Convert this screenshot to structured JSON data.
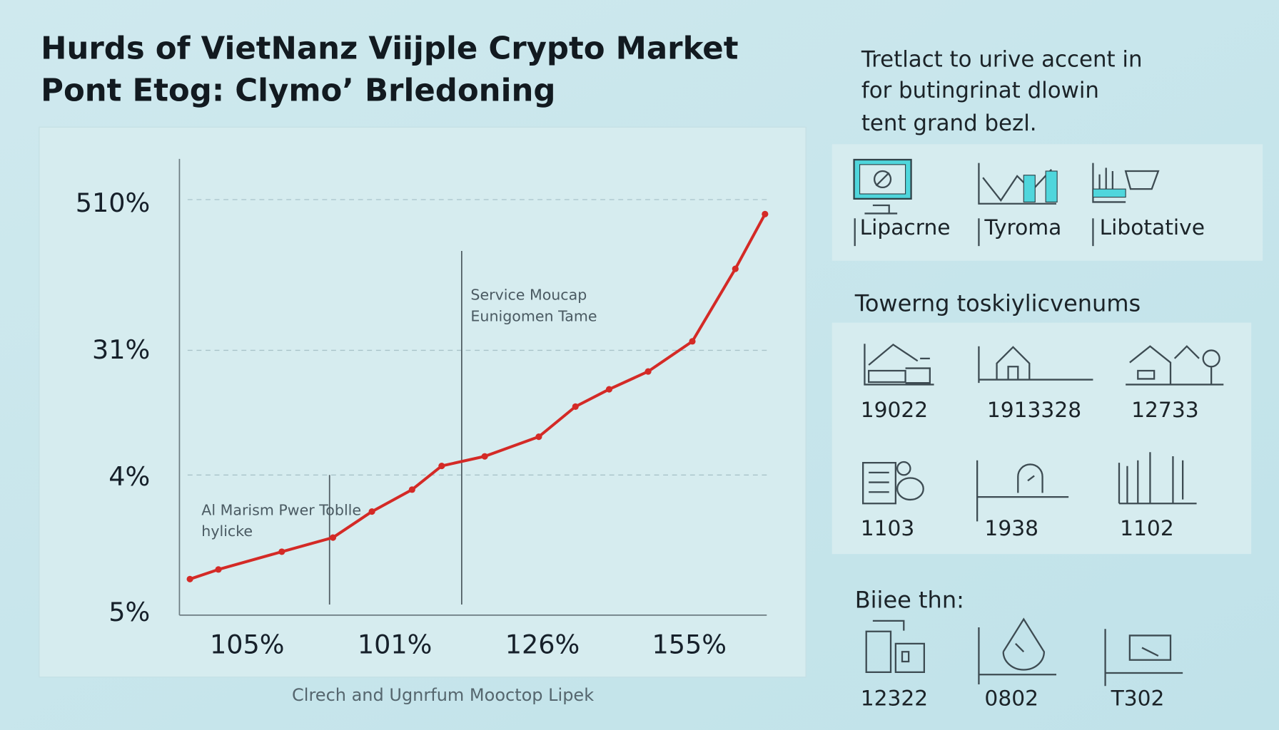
{
  "header": {
    "title_lines": [
      "Hurds of VietNanz Viijple Crypto Market",
      "Pont Etog: Clymo’ Brledoning"
    ]
  },
  "chart_data": {
    "type": "line",
    "y_labels": [
      "510%",
      "31%",
      "4%",
      "5%"
    ],
    "x_labels": [
      "105%",
      "101%",
      "126%",
      "155%"
    ],
    "xlim": [
      0,
      101
    ],
    "ylim": [
      0,
      100
    ],
    "series": [
      {
        "color": "#d42a26",
        "x": [
          1.8,
          6.7,
          17.6,
          26.4,
          33.1,
          40.0,
          45.1,
          52.5,
          61.8,
          68.1,
          73.9,
          80.6,
          88.2,
          95.6,
          100.7
        ],
        "values": [
          7.9,
          10.0,
          13.9,
          17.0,
          22.7,
          27.5,
          32.7,
          34.8,
          39.1,
          45.7,
          49.5,
          53.4,
          60.0,
          75.9,
          87.9
        ]
      }
    ],
    "annotations": [
      {
        "lines": [
          "Service Moucap",
          "Eunigomen Tame"
        ]
      },
      {
        "lines": [
          "Al Marism Pwer Toblle",
          "hylicke"
        ]
      }
    ]
  },
  "sidebar": {
    "intro_lines": [
      "Tretlact to urive accent in",
      "for butingrinat dlowin",
      "tent grand bezl."
    ],
    "tools": [
      "Lipacrne",
      "Tyroma",
      "Libotative"
    ],
    "section1": {
      "title": "Towerng toskiylicvenums",
      "items": [
        "19022",
        "1913328",
        "12733",
        "1103",
        "1938",
        "1102"
      ]
    },
    "section2": {
      "title": "Biiee thn:",
      "items": [
        "12322",
        "0802",
        "T302"
      ]
    }
  },
  "footer": {
    "text": "Clrech and Ugnrfum Mooctop Lipek"
  }
}
